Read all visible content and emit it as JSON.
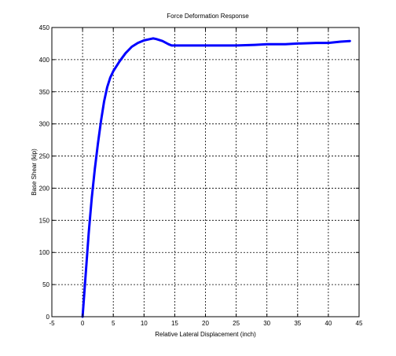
{
  "chart_data": {
    "type": "line",
    "title": "Force Deformation Response",
    "xlabel": "Relative Lateral Displacement (inch)",
    "ylabel": "Base Shear (kip)",
    "xlim": [
      -5,
      45
    ],
    "ylim": [
      0,
      450
    ],
    "xticks": [
      -5,
      0,
      5,
      10,
      15,
      20,
      25,
      30,
      35,
      40,
      45
    ],
    "yticks": [
      0,
      50,
      100,
      150,
      200,
      250,
      300,
      350,
      400,
      450
    ],
    "grid": true,
    "series": [
      {
        "color": "#0000ff",
        "x": [
          0,
          0.5,
          1,
          1.5,
          2,
          2.5,
          3,
          3.5,
          4,
          4.5,
          5,
          6,
          7,
          8,
          9,
          10,
          11,
          11.5,
          12,
          13,
          14,
          14.5,
          15,
          16,
          18,
          20,
          22,
          25,
          28,
          30,
          33,
          35,
          38,
          40,
          42,
          43.5
        ],
        "y": [
          0,
          65,
          130,
          185,
          230,
          270,
          305,
          335,
          357,
          372,
          382,
          397,
          410,
          420,
          426,
          430,
          432,
          433,
          432,
          429,
          424,
          422,
          422,
          422,
          422,
          422,
          422,
          422,
          423,
          424,
          424,
          425,
          426,
          426,
          428,
          429
        ]
      }
    ]
  }
}
